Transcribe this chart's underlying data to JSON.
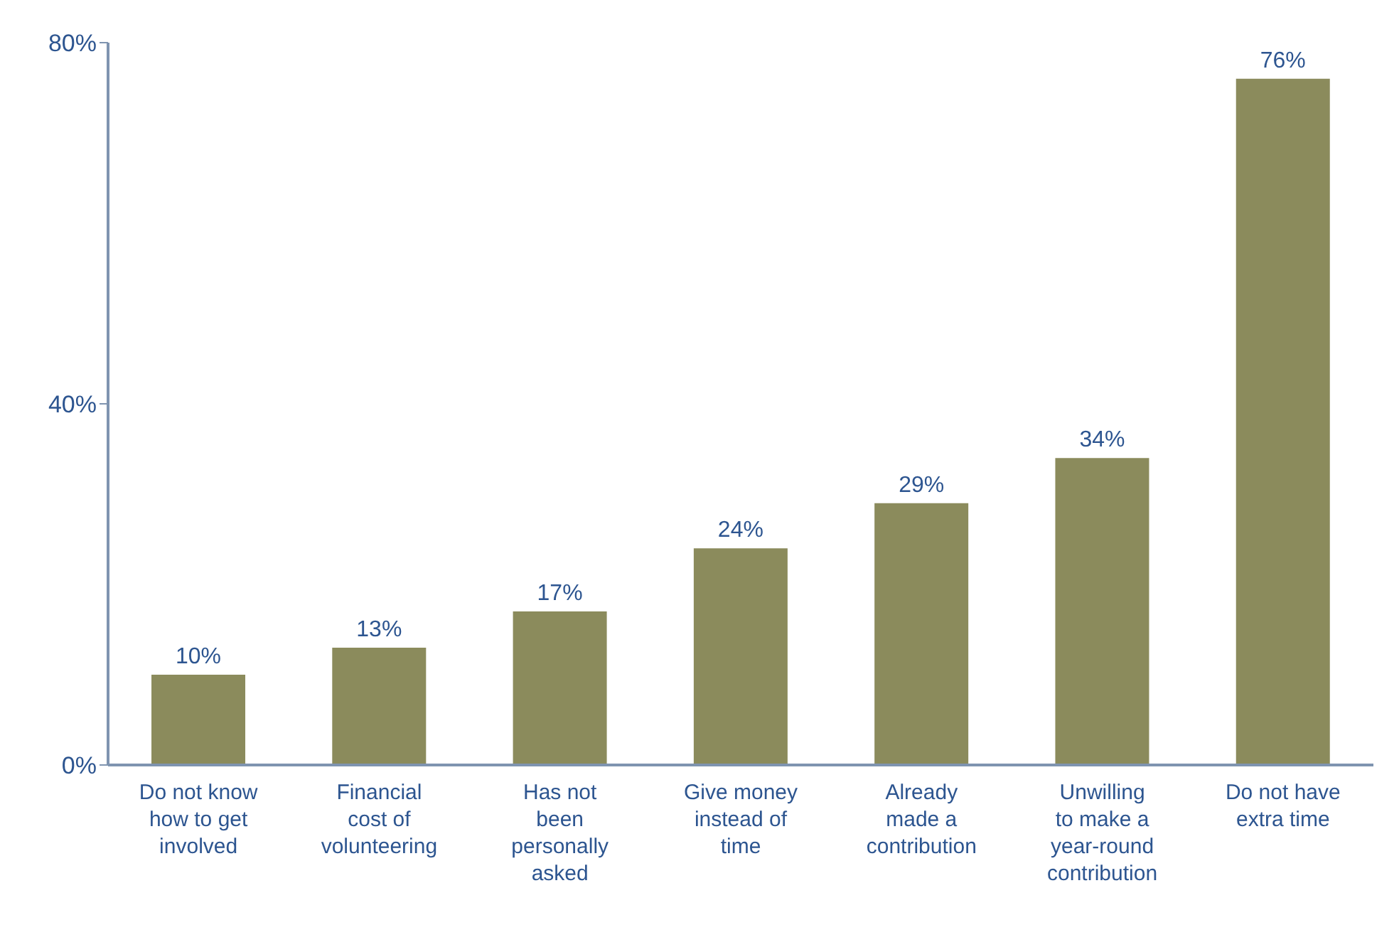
{
  "chart_data": {
    "type": "bar",
    "categories": [
      "Do not know how to get involved",
      "Financial cost of volunteering",
      "Has not been personally asked",
      "Give money instead of time",
      "Already made a contribution",
      "Unwilling to make a year-round contribution",
      "Do not have extra time"
    ],
    "values": [
      10,
      13,
      17,
      24,
      29,
      34,
      76
    ],
    "value_labels": [
      "10%",
      "13%",
      "17%",
      "24%",
      "29%",
      "34%",
      "76%"
    ],
    "color": "#8b8b5c",
    "ylim": [
      0,
      80
    ],
    "yticks": [
      {
        "value": 0,
        "label": "0%"
      },
      {
        "value": 40,
        "label": "40%"
      },
      {
        "value": 80,
        "label": "80%"
      }
    ],
    "grid": false,
    "legend": false
  }
}
